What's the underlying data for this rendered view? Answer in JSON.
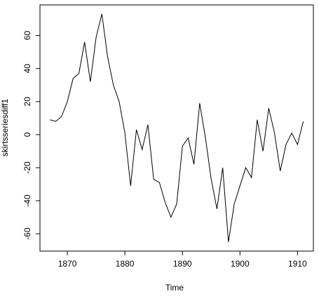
{
  "chart_data": {
    "type": "line",
    "x_label": "Time",
    "y_label": "skirtsseriesdiff1",
    "x": [
      1867,
      1868,
      1869,
      1870,
      1871,
      1872,
      1873,
      1874,
      1875,
      1876,
      1877,
      1878,
      1879,
      1880,
      1881,
      1882,
      1883,
      1884,
      1885,
      1886,
      1887,
      1888,
      1889,
      1890,
      1891,
      1892,
      1893,
      1894,
      1895,
      1896,
      1897,
      1898,
      1899,
      1900,
      1901,
      1902,
      1903,
      1904,
      1905,
      1906,
      1907,
      1908,
      1909,
      1910,
      1911
    ],
    "values": [
      9,
      8,
      11,
      20,
      34,
      37,
      56,
      32,
      59,
      73,
      47,
      30,
      20,
      1,
      -31,
      3,
      -9,
      6,
      -27,
      -29,
      -41,
      -50,
      -42,
      -7,
      -2,
      -18,
      19,
      -2,
      -27,
      -45,
      -20,
      -65,
      -42,
      -31,
      -20,
      -26,
      9,
      -10,
      16,
      1,
      -22,
      -6,
      1,
      -6,
      8
    ],
    "color": "#000000",
    "xlim": [
      1865.24,
      1912.76
    ],
    "xticks": [
      1870,
      1880,
      1890,
      1900,
      1910
    ],
    "ylim": [
      -70.5,
      78.5
    ],
    "yticks": [
      -60,
      -40,
      -20,
      0,
      20,
      40,
      60
    ]
  }
}
